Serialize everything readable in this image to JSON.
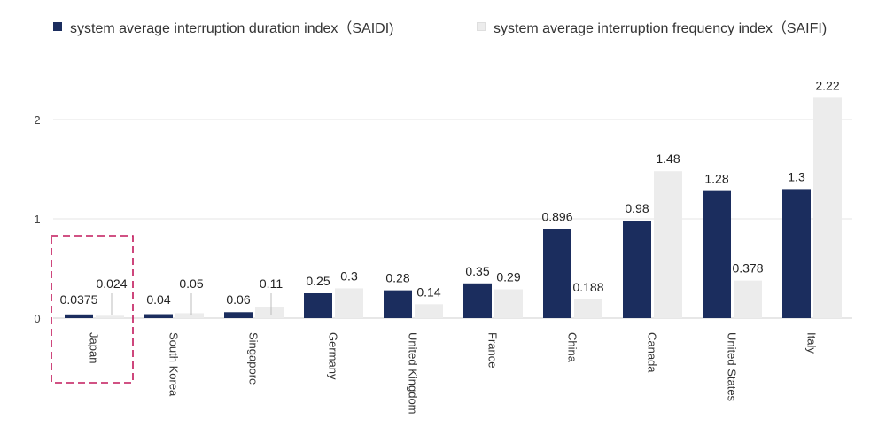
{
  "chart_data": {
    "type": "bar",
    "categories": [
      "Japan",
      "South Korea",
      "Singapore",
      "Germany",
      "United Kingdom",
      "France",
      "China",
      "Canada",
      "United States",
      "Italy"
    ],
    "series": [
      {
        "name": "system average interruption duration index（SAIDI)",
        "values": [
          0.0375,
          0.04,
          0.06,
          0.25,
          0.28,
          0.35,
          0.896,
          0.98,
          1.28,
          1.3
        ],
        "labels": [
          "0.0375",
          "0.04",
          "0.06",
          "0.25",
          "0.28",
          "0.35",
          "0.896",
          "0.98",
          "1.28",
          "1.3"
        ],
        "color": "#1b2d5e"
      },
      {
        "name": "system average interruption frequency index（SAIFI)",
        "values": [
          0.024,
          0.05,
          0.11,
          0.3,
          0.14,
          0.29,
          0.188,
          1.48,
          0.378,
          2.22
        ],
        "labels": [
          "0.024",
          "0.05",
          "0.11",
          "0.3",
          "0.14",
          "0.29",
          "0.188",
          "1.48",
          "0.378",
          "2.22"
        ],
        "color": "#ececec"
      }
    ],
    "yticks": [
      "0",
      "1",
      "2"
    ],
    "ylim": [
      0,
      2.3
    ],
    "grid": true,
    "legend_position": "top",
    "highlight_category": "Japan",
    "highlight_color": "#c2185b"
  }
}
